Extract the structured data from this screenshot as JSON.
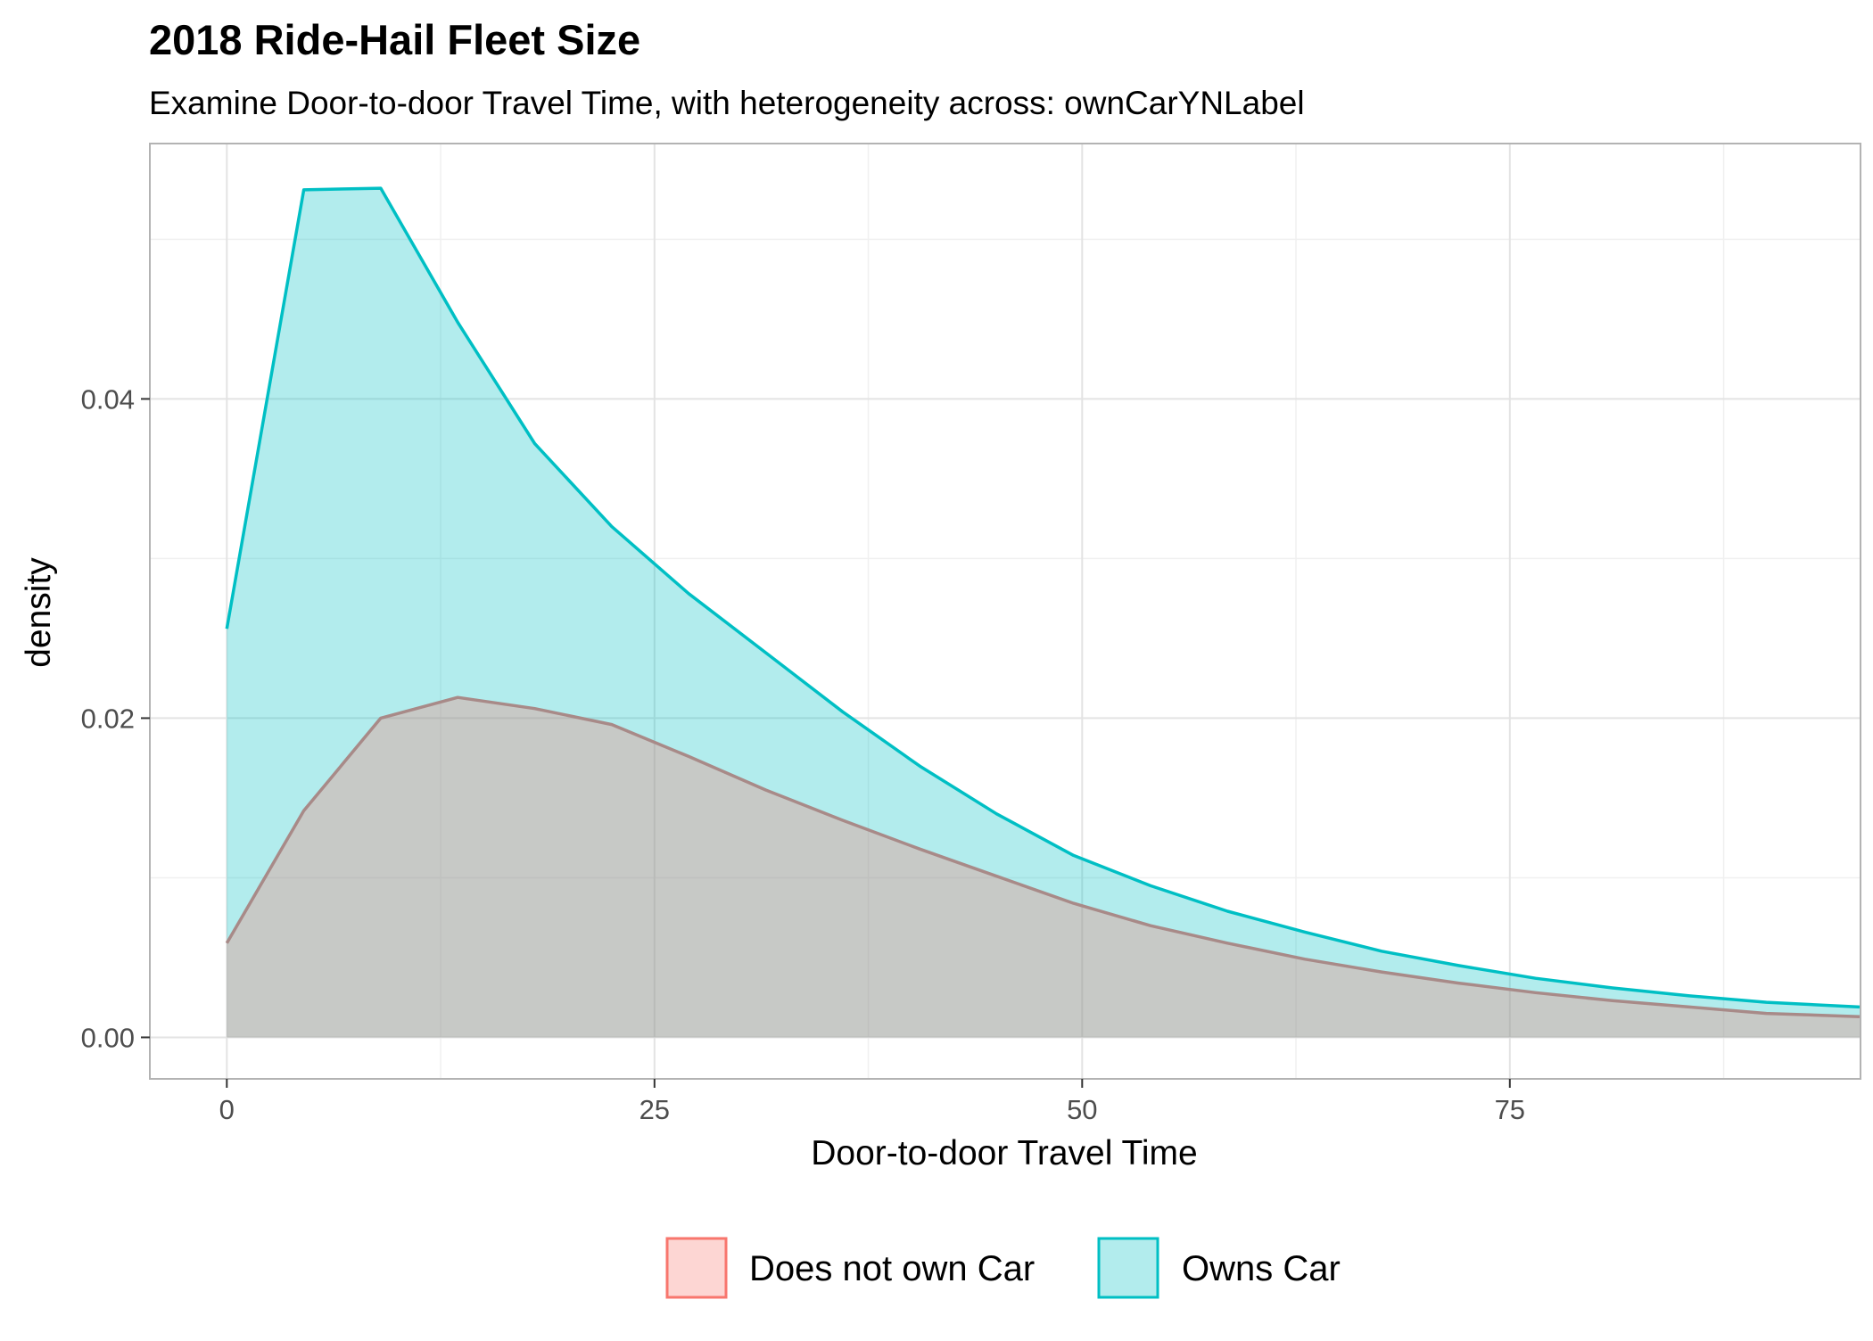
{
  "chart_data": {
    "type": "area",
    "title": "2018 Ride-Hail Fleet Size",
    "subtitle": "Examine Door-to-door Travel Time, with heterogeneity across: ownCarYNLabel",
    "xlabel": "Door-to-door Travel Time",
    "ylabel": "density",
    "xlim": [
      -4.5,
      95.5
    ],
    "ylim": [
      -0.0026,
      0.056
    ],
    "x_ticks": [
      0,
      25,
      50,
      75
    ],
    "x_tick_labels": [
      "0",
      "25",
      "50",
      "75"
    ],
    "y_ticks": [
      0,
      0.02,
      0.04
    ],
    "y_tick_labels": [
      "0.00",
      "0.02",
      "0.04"
    ],
    "grid": true,
    "legend_position": "bottom",
    "legend_labels": [
      "Does not own Car",
      "Owns Car"
    ],
    "series": [
      {
        "name": "Does not own Car",
        "color": "#F8766D",
        "line_color": "#A88A88",
        "x": [
          0,
          4.5,
          9,
          13.5,
          18,
          22.5,
          27,
          31.5,
          36,
          40.5,
          45,
          49.5,
          54,
          58.5,
          63,
          67.5,
          72,
          76.5,
          81,
          85.5,
          90,
          95.5
        ],
        "values": [
          0.0059,
          0.0142,
          0.02,
          0.0213,
          0.0206,
          0.0196,
          0.0176,
          0.0155,
          0.0136,
          0.0118,
          0.0101,
          0.0084,
          0.007,
          0.0059,
          0.0049,
          0.0041,
          0.0034,
          0.0028,
          0.0023,
          0.0019,
          0.0015,
          0.0013
        ]
      },
      {
        "name": "Owns Car",
        "color": "#00BFC4",
        "line_color": "#00BFC4",
        "x": [
          0,
          4.5,
          9,
          13.5,
          18,
          22.5,
          27,
          31.5,
          36,
          40.5,
          45,
          49.5,
          54,
          58.5,
          63,
          67.5,
          72,
          76.5,
          81,
          85.5,
          90,
          95.5
        ],
        "values": [
          0.0256,
          0.0531,
          0.0532,
          0.0448,
          0.0372,
          0.032,
          0.0278,
          0.0241,
          0.0204,
          0.017,
          0.014,
          0.0114,
          0.0095,
          0.0079,
          0.0066,
          0.0054,
          0.0045,
          0.0037,
          0.0031,
          0.0026,
          0.0022,
          0.0019
        ]
      }
    ]
  }
}
